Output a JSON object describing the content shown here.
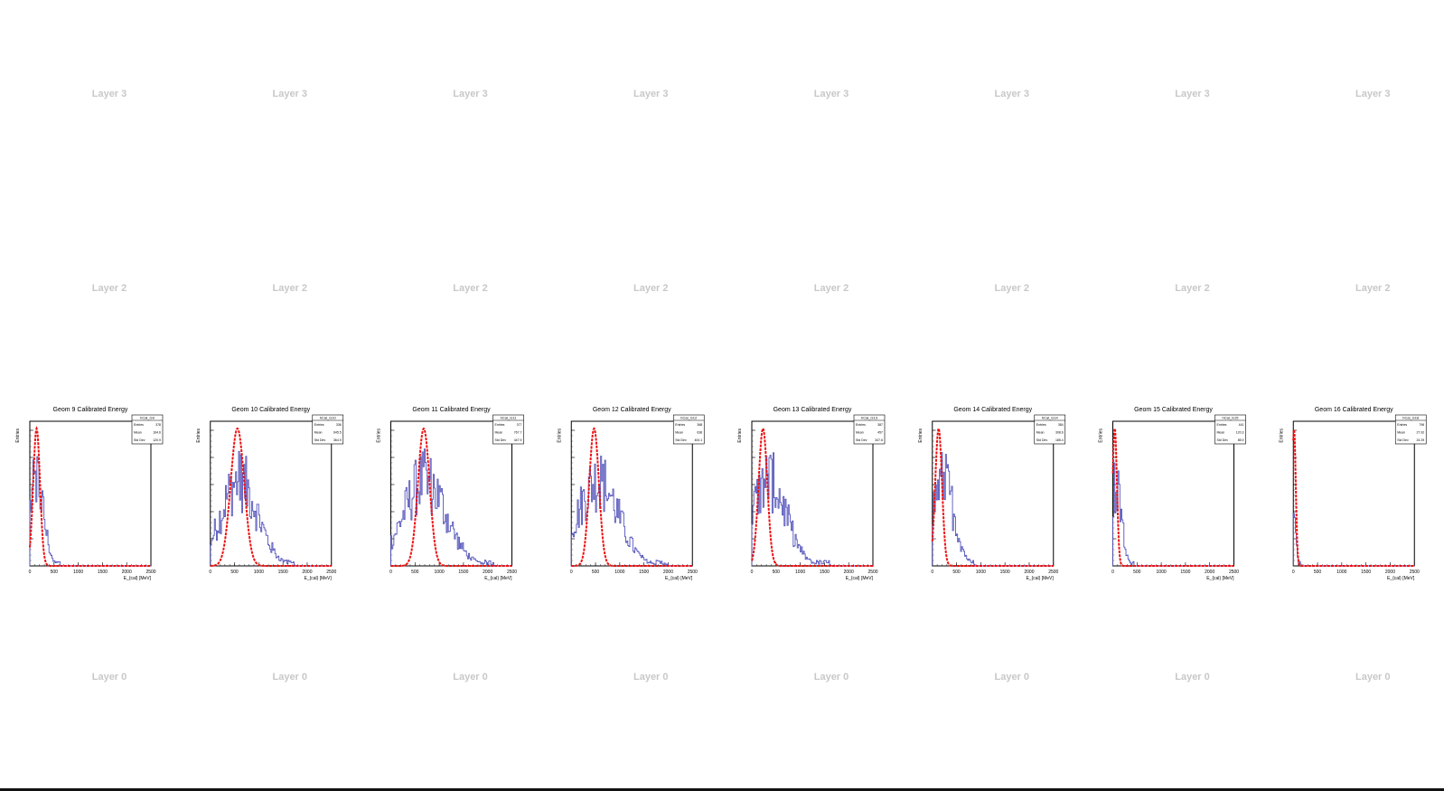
{
  "layer_labels": [
    "Layer 3",
    "Layer 2",
    "Layer 0"
  ],
  "colors": {
    "data_hist": "#5555bb",
    "reference_curve": "#ee1111",
    "placeholder_text": "#c8c8c8"
  },
  "chart_data": [
    {
      "type": "histogram",
      "title": "Geom 9 Calibrated Energy",
      "xlabel": "E_{cal} [MeV]",
      "ylabel": "Entries",
      "xlim": [
        0,
        2500
      ],
      "x_ticks": [
        "0",
        "500",
        "1000",
        "1500",
        "2000",
        "2500"
      ],
      "stats": {
        "name": "hCal_G9",
        "labels": [
          "Entries",
          "Mean",
          "Std Dev"
        ],
        "values": [
          "378",
          "164.6",
          "120.9"
        ]
      },
      "data_peak": 140,
      "data_end": 620,
      "data_width": 150,
      "ref_peak": 140,
      "ref_width": 70
    },
    {
      "type": "histogram",
      "title": "Geom 10 Calibrated Energy",
      "xlabel": "E_{cal} [MeV]",
      "ylabel": "Entries",
      "xlim": [
        0,
        2500
      ],
      "x_ticks": [
        "0",
        "500",
        "1000",
        "1500",
        "2000",
        "2500"
      ],
      "stats": {
        "name": "hCal_G10",
        "labels": [
          "Entries",
          "Mean",
          "Std Dev"
        ],
        "values": [
          "336",
          "645.5",
          "364.9"
        ]
      },
      "data_peak": 600,
      "data_end": 1750,
      "data_width": 380,
      "ref_peak": 560,
      "ref_width": 140
    },
    {
      "type": "histogram",
      "title": "Geom 11 Calibrated Energy",
      "xlabel": "E_{cal} [MeV]",
      "ylabel": "Entries",
      "xlim": [
        0,
        2500
      ],
      "x_ticks": [
        "0",
        "500",
        "1000",
        "1500",
        "2000",
        "2500"
      ],
      "stats": {
        "name": "hCal_G11",
        "labels": [
          "Entries",
          "Mean",
          "Std Dev"
        ],
        "values": [
          "377",
          "767.7",
          "447.9"
        ]
      },
      "data_peak": 700,
      "data_end": 2150,
      "data_width": 440,
      "ref_peak": 680,
      "ref_width": 120
    },
    {
      "type": "histogram",
      "title": "Geom 12 Calibrated Energy",
      "xlabel": "E_{cal} [MeV]",
      "ylabel": "Entries",
      "xlim": [
        0,
        2500
      ],
      "x_ticks": [
        "0",
        "500",
        "1000",
        "1500",
        "2000",
        "2500"
      ],
      "stats": {
        "name": "hCal_G12",
        "labels": [
          "Entries",
          "Mean",
          "Std Dev"
        ],
        "values": [
          "368",
          "636",
          "400.1"
        ]
      },
      "data_peak": 550,
      "data_end": 2000,
      "data_width": 420,
      "ref_peak": 470,
      "ref_width": 100
    },
    {
      "type": "histogram",
      "title": "Geom 13 Calibrated Energy",
      "xlabel": "E_{cal} [MeV]",
      "ylabel": "Entries",
      "xlim": [
        0,
        2500
      ],
      "x_ticks": [
        "0",
        "500",
        "1000",
        "1500",
        "2000",
        "2500"
      ],
      "stats": {
        "name": "hCal_G13",
        "labels": [
          "Entries",
          "Mean",
          "Std Dev"
        ],
        "values": [
          "387",
          "457",
          "347.6"
        ]
      },
      "data_peak": 350,
      "data_end": 1650,
      "data_width": 360,
      "ref_peak": 230,
      "ref_width": 90
    },
    {
      "type": "histogram",
      "title": "Geom 14 Calibrated Energy",
      "xlabel": "E_{cal} [MeV]",
      "ylabel": "Entries",
      "xlim": [
        0,
        2500
      ],
      "x_ticks": [
        "0",
        "500",
        "1000",
        "1500",
        "2000",
        "2500"
      ],
      "stats": {
        "name": "hCal_G14",
        "labels": [
          "Entries",
          "Mean",
          "Std Dev"
        ],
        "values": [
          "384",
          "308.6",
          "185.4"
        ]
      },
      "data_peak": 220,
      "data_end": 870,
      "data_width": 230,
      "ref_peak": 130,
      "ref_width": 70
    },
    {
      "type": "histogram",
      "title": "Geom 15 Calibrated Energy",
      "xlabel": "E_{cal} [MeV]",
      "ylabel": "Entries",
      "xlim": [
        0,
        2500
      ],
      "x_ticks": [
        "0",
        "500",
        "1000",
        "1500",
        "2000",
        "2500"
      ],
      "stats": {
        "name": "hCal_G15",
        "labels": [
          "Entries",
          "Mean",
          "Std Dev"
        ],
        "values": [
          "441",
          "120.3",
          "85.9"
        ]
      },
      "data_peak": 70,
      "data_end": 430,
      "data_width": 110,
      "ref_peak": 40,
      "ref_width": 45
    },
    {
      "type": "histogram",
      "title": "Geom 16 Calibrated Energy",
      "xlabel": "E_{cal} [MeV]",
      "ylabel": "Entries",
      "xlim": [
        0,
        2500
      ],
      "x_ticks": [
        "0",
        "500",
        "1000",
        "1500",
        "2000",
        "2500"
      ],
      "stats": {
        "name": "hCal_G16",
        "labels": [
          "Entries",
          "Mean",
          "Std Dev"
        ],
        "values": [
          "796",
          "27.92",
          "24.29"
        ]
      },
      "data_peak": 15,
      "data_end": 160,
      "data_width": 35,
      "ref_peak": 15,
      "ref_width": 35
    }
  ]
}
